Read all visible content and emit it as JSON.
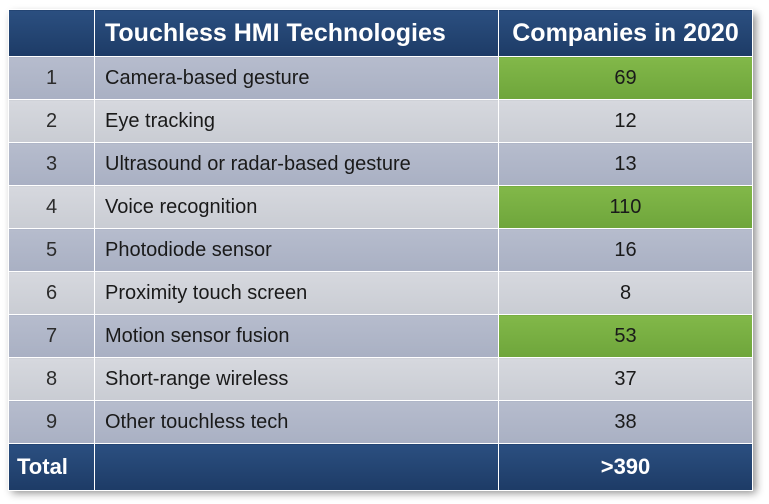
{
  "header": {
    "index_label": "",
    "technology_label": "Touchless HMI Technologies",
    "companies_label": "Companies in 2020"
  },
  "rows": [
    {
      "num": "1",
      "tech": "Camera-based gesture",
      "companies": "69",
      "highlight": true
    },
    {
      "num": "2",
      "tech": "Eye tracking",
      "companies": "12",
      "highlight": false
    },
    {
      "num": "3",
      "tech": "Ultrasound or radar-based gesture",
      "companies": "13",
      "highlight": false
    },
    {
      "num": "4",
      "tech": "Voice recognition",
      "companies": "110",
      "highlight": true
    },
    {
      "num": "5",
      "tech": "Photodiode sensor",
      "companies": "16",
      "highlight": false
    },
    {
      "num": "6",
      "tech": "Proximity touch screen",
      "companies": "8",
      "highlight": false
    },
    {
      "num": "7",
      "tech": "Motion sensor fusion",
      "companies": "53",
      "highlight": true
    },
    {
      "num": "8",
      "tech": "Short-range wireless",
      "companies": "37",
      "highlight": false
    },
    {
      "num": "9",
      "tech": "Other touchless tech",
      "companies": "38",
      "highlight": false
    }
  ],
  "footer": {
    "total_label": "Total",
    "middle": "",
    "total_value": ">390"
  },
  "colors": {
    "header_bg": "#1d3b66",
    "highlight": "#74ab3f",
    "row_dark": "#adb3c6",
    "row_light": "#d0d2d9"
  }
}
